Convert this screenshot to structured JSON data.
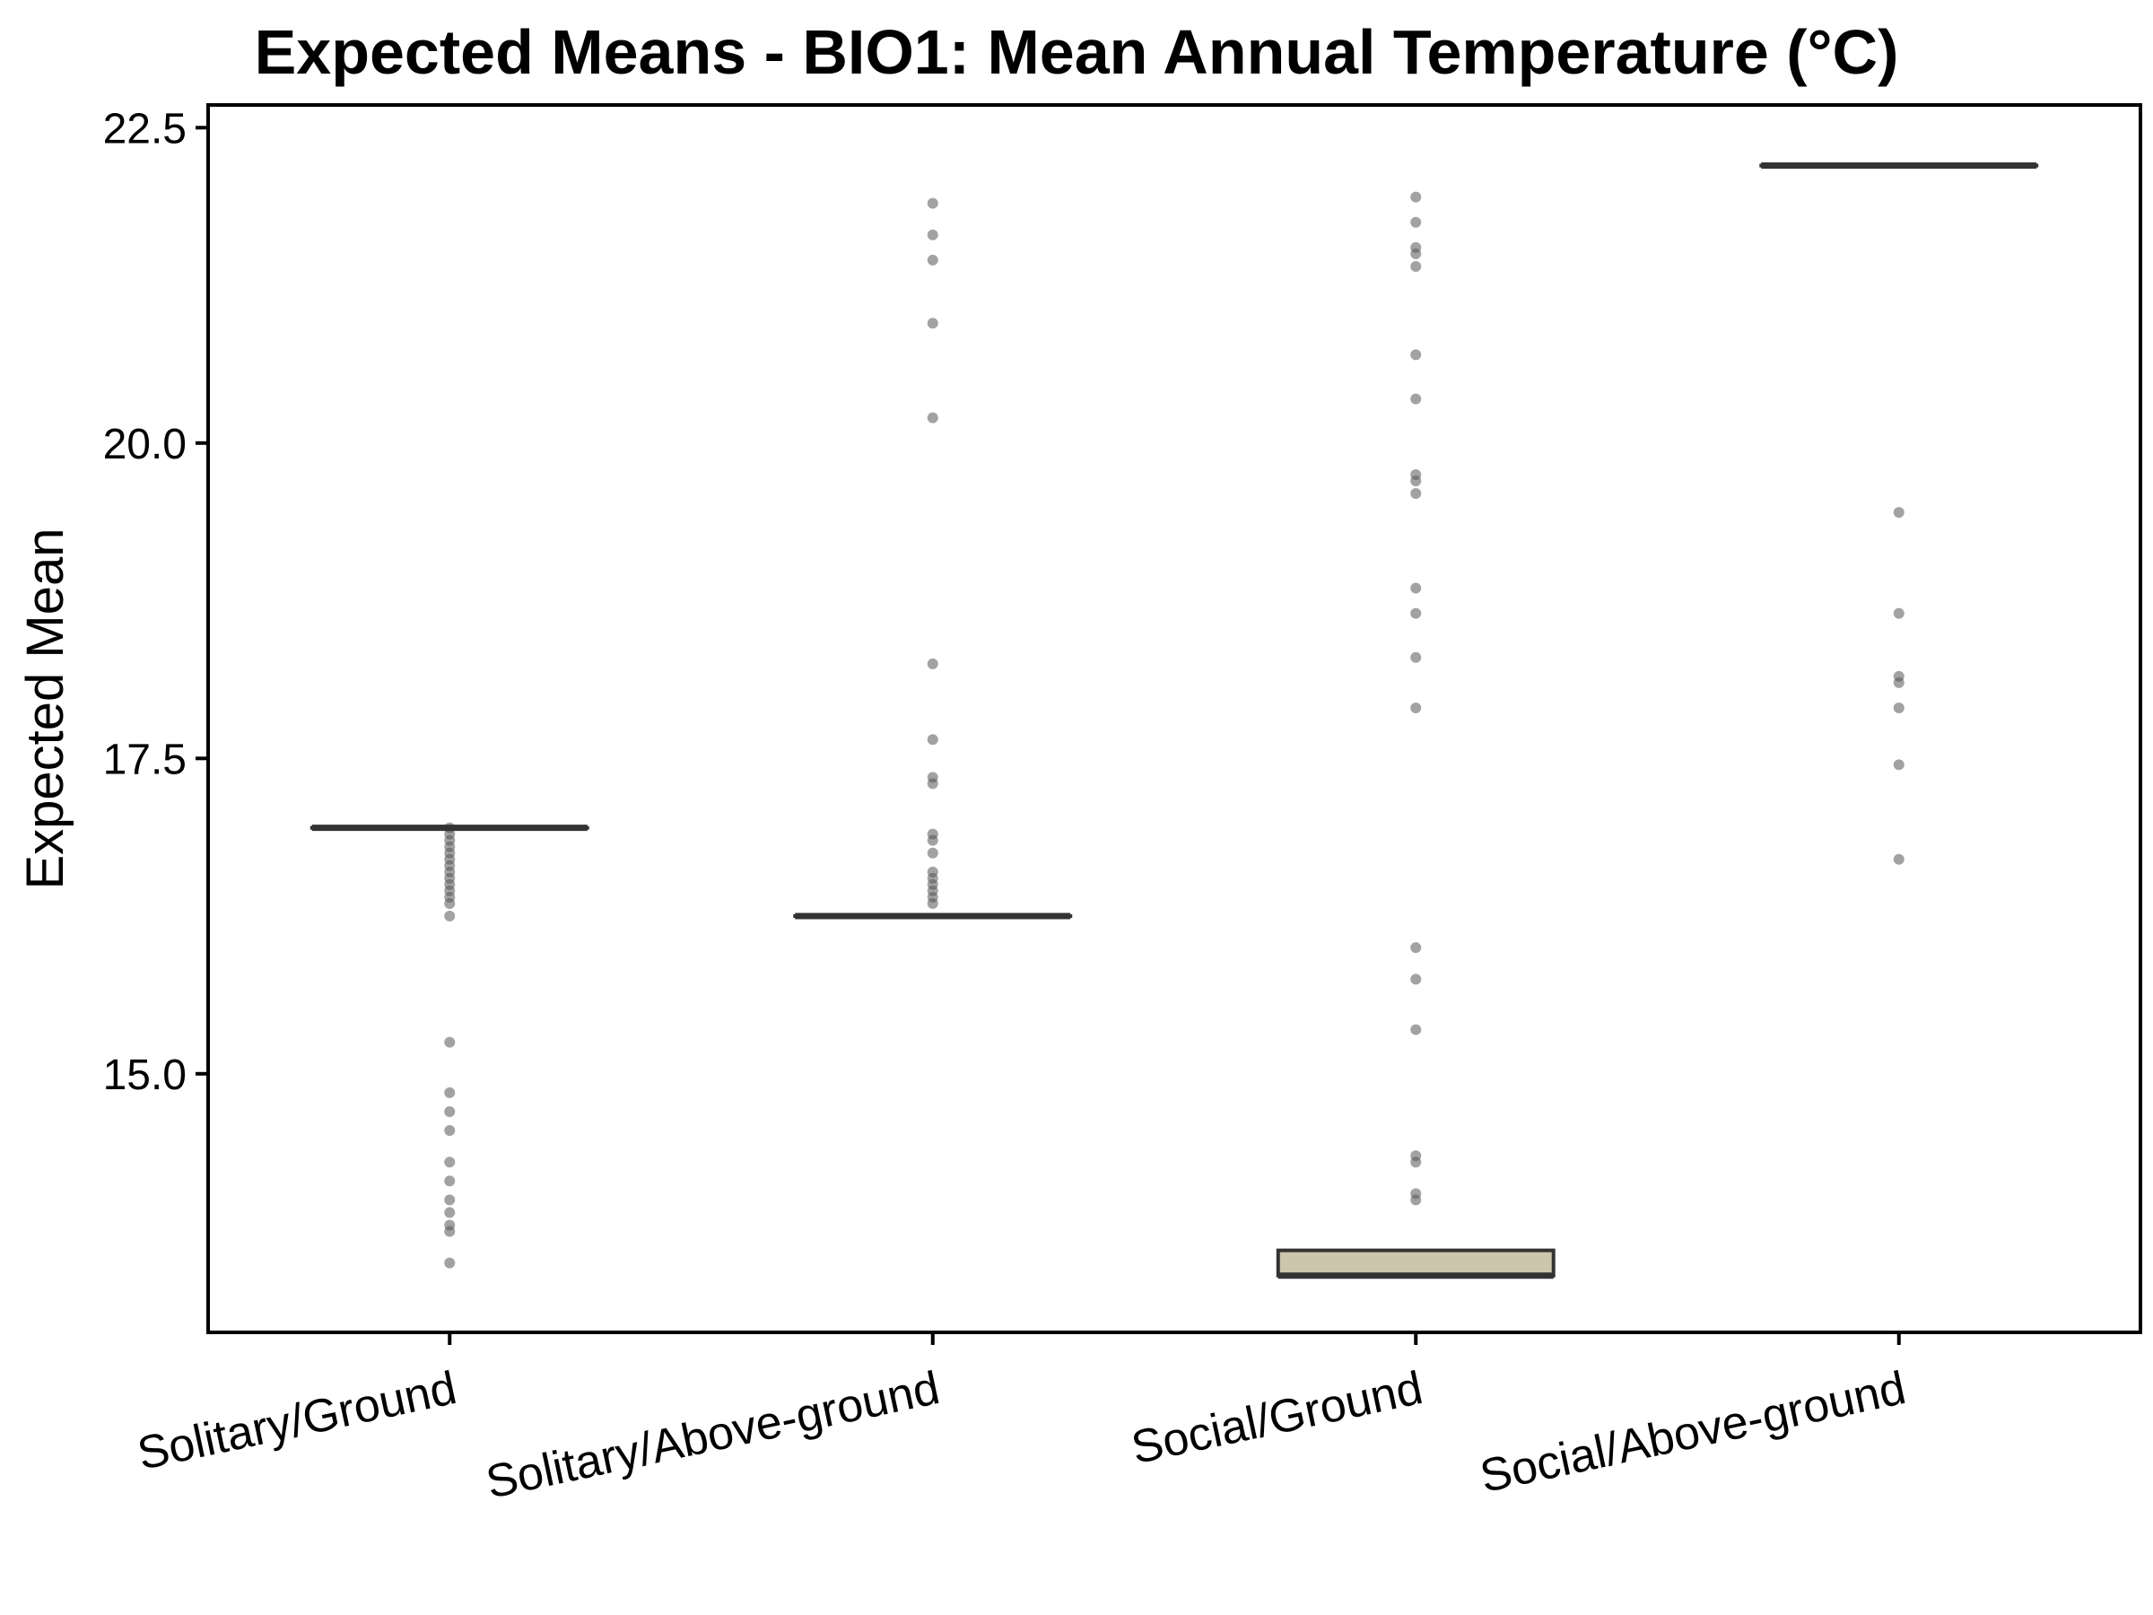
{
  "chart_data": {
    "type": "boxplot",
    "title": "Expected Means - BIO1: Mean Annual Temperature (°C)",
    "xlabel": "",
    "ylabel": "Expected Mean",
    "ylim": [
      12.95,
      22.68
    ],
    "yticks": [
      15.0,
      17.5,
      20.0,
      22.5
    ],
    "ytick_labels": [
      "15.0",
      "17.5",
      "20.0",
      "22.5"
    ],
    "categories": [
      "Solitary/Ground",
      "Solitary/Above-ground",
      "Social/Ground",
      "Social/Above-ground"
    ],
    "boxes": [
      {
        "category": "Solitary/Ground",
        "lower": 16.95,
        "median": 16.95,
        "upper": 16.95
      },
      {
        "category": "Solitary/Above-ground",
        "lower": 16.25,
        "median": 16.25,
        "upper": 16.25
      },
      {
        "category": "Social/Ground",
        "lower": 13.4,
        "median": 13.4,
        "upper": 13.6
      },
      {
        "category": "Social/Above-ground",
        "lower": 22.2,
        "median": 22.2,
        "upper": 22.2
      }
    ],
    "points": [
      {
        "category": "Solitary/Ground",
        "values": [
          16.95,
          16.9,
          16.85,
          16.8,
          16.75,
          16.7,
          16.65,
          16.6,
          16.55,
          16.5,
          16.45,
          16.4,
          16.35,
          16.25,
          15.25,
          14.85,
          14.7,
          14.55,
          14.3,
          14.15,
          14.0,
          13.9,
          13.8,
          13.75,
          13.5
        ]
      },
      {
        "category": "Solitary/Above-ground",
        "values": [
          21.9,
          21.65,
          21.45,
          20.95,
          20.2,
          18.25,
          17.65,
          17.35,
          17.3,
          16.9,
          16.85,
          16.75,
          16.6,
          16.55,
          16.5,
          16.45,
          16.4,
          16.35
        ]
      },
      {
        "category": "Social/Ground",
        "values": [
          21.95,
          21.75,
          21.55,
          21.5,
          21.4,
          20.7,
          20.35,
          19.75,
          19.7,
          19.6,
          18.85,
          18.65,
          18.3,
          17.9,
          16.0,
          15.75,
          15.35,
          14.35,
          14.3,
          14.05,
          14.0
        ]
      },
      {
        "category": "Social/Above-ground",
        "values": [
          19.45,
          18.65,
          18.15,
          18.1,
          17.9,
          17.45,
          16.7
        ]
      }
    ],
    "colors": {
      "box_line": "#333333",
      "box_fill_social_ground": "#cdc6ad",
      "point": "#555555",
      "axis": "#000000"
    },
    "legend": "none",
    "grid": false
  }
}
